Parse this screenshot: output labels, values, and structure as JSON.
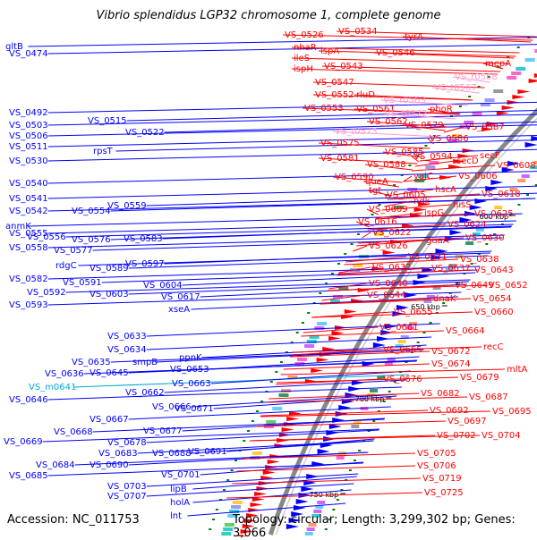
{
  "title": "Vibrio splendidus LGP32 chromosome 1, complete genome",
  "accession": "Accession: NC_011753",
  "stats": "Topology: circular; Length: 3,299,302 bp; Genes: 3,066",
  "colors": {
    "plus_strand": "#0000ff",
    "minus_strand": "#ff0000",
    "rna_label": "#ff99cc",
    "pseudo_label": "#00aacc",
    "backbone": "#888888",
    "tick": "#008000"
  },
  "kbp_ticks": [
    {
      "label": "500 kbp",
      "kbp": 500
    },
    {
      "label": "550 kbp",
      "kbp": 550
    },
    {
      "label": "600 kbp",
      "kbp": 600
    },
    {
      "label": "650 kbp",
      "kbp": 650
    },
    {
      "label": "700 kbp",
      "kbp": 700
    },
    {
      "label": "750 kbp",
      "kbp": 750
    }
  ],
  "left_labels": [
    {
      "text": "VS_0474",
      "kind": "gene"
    },
    {
      "text": "gltB",
      "kind": "gene"
    },
    {
      "text": "VS_0492",
      "kind": "gene"
    },
    {
      "text": "VS_0515",
      "kind": "gene"
    },
    {
      "text": "VS_0503",
      "kind": "gene"
    },
    {
      "text": "VS_0506",
      "kind": "gene"
    },
    {
      "text": "VS_0522",
      "kind": "gene"
    },
    {
      "text": "VS_0511",
      "kind": "gene"
    },
    {
      "text": "rpsT",
      "kind": "gene"
    },
    {
      "text": "VS_0530",
      "kind": "gene"
    },
    {
      "text": "VS_0540",
      "kind": "gene"
    },
    {
      "text": "VS_0541",
      "kind": "gene"
    },
    {
      "text": "VS_0559",
      "kind": "gene"
    },
    {
      "text": "VS_0542",
      "kind": "gene"
    },
    {
      "text": "VS_0554",
      "kind": "gene"
    },
    {
      "text": "anmK",
      "kind": "gene"
    },
    {
      "text": "VS_0555",
      "kind": "gene"
    },
    {
      "text": "VS_0556",
      "kind": "gene"
    },
    {
      "text": "VS_0576",
      "kind": "gene"
    },
    {
      "text": "VS_0583",
      "kind": "gene"
    },
    {
      "text": "VS_0558",
      "kind": "gene"
    },
    {
      "text": "VS_0577",
      "kind": "gene"
    },
    {
      "text": "rdgC",
      "kind": "gene"
    },
    {
      "text": "VS_0589",
      "kind": "gene"
    },
    {
      "text": "VS_0597",
      "kind": "gene"
    },
    {
      "text": "VS_0582",
      "kind": "gene"
    },
    {
      "text": "VS_0591",
      "kind": "gene"
    },
    {
      "text": "VS_0604",
      "kind": "gene"
    },
    {
      "text": "VS_0592",
      "kind": "gene"
    },
    {
      "text": "VS_0603",
      "kind": "gene"
    },
    {
      "text": "VS_0617",
      "kind": "gene"
    },
    {
      "text": "VS_0593",
      "kind": "gene"
    },
    {
      "text": "xseA",
      "kind": "gene"
    },
    {
      "text": "VS_0633",
      "kind": "gene"
    },
    {
      "text": "VS_0634",
      "kind": "gene"
    },
    {
      "text": "ppnK",
      "kind": "gene"
    },
    {
      "text": "VS_0635",
      "kind": "gene"
    },
    {
      "text": "smpB",
      "kind": "gene"
    },
    {
      "text": "VS_0653",
      "kind": "gene"
    },
    {
      "text": "VS_0636",
      "kind": "gene"
    },
    {
      "text": "VS_0645",
      "kind": "gene"
    },
    {
      "text": "VS_m0641",
      "kind": "pseudo"
    },
    {
      "text": "VS_0663",
      "kind": "gene"
    },
    {
      "text": "VS_0662",
      "kind": "gene"
    },
    {
      "text": "VS_0646",
      "kind": "gene"
    },
    {
      "text": "VS_0666",
      "kind": "gene"
    },
    {
      "text": "VS_0671",
      "kind": "gene"
    },
    {
      "text": "VS_0667",
      "kind": "gene"
    },
    {
      "text": "VS_0677",
      "kind": "gene"
    },
    {
      "text": "VS_0668",
      "kind": "gene"
    },
    {
      "text": "VS_0678",
      "kind": "gene"
    },
    {
      "text": "VS_0669",
      "kind": "gene"
    },
    {
      "text": "VS_0683",
      "kind": "gene"
    },
    {
      "text": "VS_0688",
      "kind": "gene"
    },
    {
      "text": "VS_0691",
      "kind": "gene"
    },
    {
      "text": "VS_0684",
      "kind": "gene"
    },
    {
      "text": "VS_0690",
      "kind": "gene"
    },
    {
      "text": "VS_0685",
      "kind": "gene"
    },
    {
      "text": "VS_0701",
      "kind": "gene"
    },
    {
      "text": "VS_0703",
      "kind": "gene"
    },
    {
      "text": "VS_0707",
      "kind": "gene"
    },
    {
      "text": "lipB",
      "kind": "gene"
    },
    {
      "text": "holA",
      "kind": "gene"
    },
    {
      "text": "lnt",
      "kind": "gene"
    }
  ],
  "right_labels": [
    {
      "text": "VS_0526",
      "kind": "gene"
    },
    {
      "text": "VS_0534",
      "kind": "gene"
    },
    {
      "text": "nhaR",
      "kind": "gene"
    },
    {
      "text": "tyrA",
      "kind": "gene"
    },
    {
      "text": "lspA",
      "kind": "gene"
    },
    {
      "text": "ileS",
      "kind": "gene"
    },
    {
      "text": "VS_0546",
      "kind": "gene"
    },
    {
      "text": "mepA",
      "kind": "gene"
    },
    {
      "text": "ispH",
      "kind": "gene"
    },
    {
      "text": "VS_0543",
      "kind": "gene"
    },
    {
      "text": "VS_r0568",
      "kind": "rna"
    },
    {
      "text": "VS_0547",
      "kind": "gene"
    },
    {
      "text": "VS_t0567",
      "kind": "rna"
    },
    {
      "text": "VS_0552",
      "kind": "gene"
    },
    {
      "text": "rluD",
      "kind": "gene"
    },
    {
      "text": "VS_r0563",
      "kind": "rna"
    },
    {
      "text": "VS_0553",
      "kind": "gene"
    },
    {
      "text": "VS_0561",
      "kind": "gene"
    },
    {
      "text": "phoR",
      "kind": "gene"
    },
    {
      "text": "VS_t0572",
      "kind": "rna"
    },
    {
      "text": "VS_0562",
      "kind": "gene"
    },
    {
      "text": "VS_0579",
      "kind": "gene"
    },
    {
      "text": "VS_t0573",
      "kind": "rna"
    },
    {
      "text": "VS_0587",
      "kind": "gene"
    },
    {
      "text": "VS_0575",
      "kind": "gene"
    },
    {
      "text": "VS_0586",
      "kind": "gene"
    },
    {
      "text": "VS_0585",
      "kind": "gene"
    },
    {
      "text": "secF",
      "kind": "gene"
    },
    {
      "text": "VS_0581",
      "kind": "gene"
    },
    {
      "text": "VS_0594",
      "kind": "gene"
    },
    {
      "text": "secD",
      "kind": "gene"
    },
    {
      "text": "VS_0588",
      "kind": "gene"
    },
    {
      "text": "VS_0608",
      "kind": "gene"
    },
    {
      "text": "queA",
      "kind": "gene"
    },
    {
      "text": "yajC",
      "kind": "gene"
    },
    {
      "text": "VS_0590",
      "kind": "gene"
    },
    {
      "text": "VS_0606",
      "kind": "gene"
    },
    {
      "text": "tgt",
      "kind": "gene"
    },
    {
      "text": "hscA",
      "kind": "gene"
    },
    {
      "text": "VS_0605",
      "kind": "gene"
    },
    {
      "text": "ndk",
      "kind": "gene"
    },
    {
      "text": "VS_0618",
      "kind": "gene"
    },
    {
      "text": "hisS",
      "kind": "gene"
    },
    {
      "text": "VS_0609",
      "kind": "gene"
    },
    {
      "text": "ispG",
      "kind": "gene"
    },
    {
      "text": "VS_0625",
      "kind": "gene"
    },
    {
      "text": "VS_0616",
      "kind": "gene"
    },
    {
      "text": "VS_0624",
      "kind": "gene"
    },
    {
      "text": "VS_0622",
      "kind": "gene"
    },
    {
      "text": "VS_0630",
      "kind": "gene"
    },
    {
      "text": "VS_0626",
      "kind": "gene"
    },
    {
      "text": "guaA",
      "kind": "gene"
    },
    {
      "text": "VS_0631",
      "kind": "gene"
    },
    {
      "text": "VS_0638",
      "kind": "gene"
    },
    {
      "text": "VS_0632",
      "kind": "gene"
    },
    {
      "text": "VS_0637",
      "kind": "gene"
    },
    {
      "text": "VS_0643",
      "kind": "gene"
    },
    {
      "text": "VS_0640",
      "kind": "gene"
    },
    {
      "text": "VS_0649",
      "kind": "gene"
    },
    {
      "text": "VS_0652",
      "kind": "gene"
    },
    {
      "text": "VS_0644",
      "kind": "gene"
    },
    {
      "text": "dnaK",
      "kind": "gene"
    },
    {
      "text": "VS_0654",
      "kind": "gene"
    },
    {
      "text": "VS_0655",
      "kind": "gene"
    },
    {
      "text": "VS_0660",
      "kind": "gene"
    },
    {
      "text": "VS_0661",
      "kind": "gene"
    },
    {
      "text": "VS_0664",
      "kind": "gene"
    },
    {
      "text": "VS_0665",
      "kind": "gene"
    },
    {
      "text": "VS_0672",
      "kind": "gene"
    },
    {
      "text": "recC",
      "kind": "gene"
    },
    {
      "text": "VS_0674",
      "kind": "gene"
    },
    {
      "text": "mltA",
      "kind": "gene"
    },
    {
      "text": "VS_0676",
      "kind": "gene"
    },
    {
      "text": "VS_0679",
      "kind": "gene"
    },
    {
      "text": "VS_0682",
      "kind": "gene"
    },
    {
      "text": "VS_0687",
      "kind": "gene"
    },
    {
      "text": "VS_0692",
      "kind": "gene"
    },
    {
      "text": "VS_0695",
      "kind": "gene"
    },
    {
      "text": "VS_0697",
      "kind": "gene"
    },
    {
      "text": "VS_0702",
      "kind": "gene"
    },
    {
      "text": "VS_0704",
      "kind": "gene"
    },
    {
      "text": "VS_0705",
      "kind": "gene"
    },
    {
      "text": "VS_0706",
      "kind": "gene"
    },
    {
      "text": "VS_0719",
      "kind": "gene"
    },
    {
      "text": "VS_0725",
      "kind": "gene"
    }
  ]
}
